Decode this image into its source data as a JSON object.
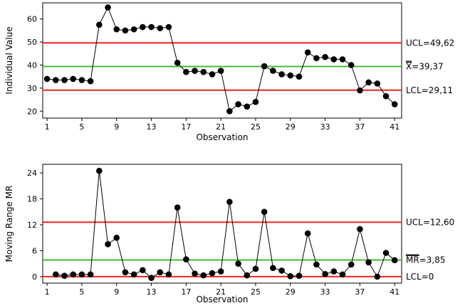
{
  "chart_data": [
    {
      "type": "line",
      "title": "",
      "xlabel": "Observation",
      "ylabel": "Individual Value",
      "xlim": [
        0.5,
        41.8
      ],
      "ylim": [
        17,
        67
      ],
      "x_ticks": [
        1,
        5,
        9,
        13,
        17,
        21,
        25,
        29,
        33,
        37,
        41
      ],
      "y_ticks": [
        20,
        30,
        40,
        50,
        60
      ],
      "series": [
        {
          "values": [
            34,
            33.5,
            33.5,
            34,
            33.5,
            33,
            57.5,
            65,
            55.5,
            55,
            55.5,
            56.5,
            56.5,
            56,
            56.5,
            41,
            37,
            37.5,
            37,
            36,
            37.5,
            20,
            23,
            22,
            24,
            39.5,
            37.5,
            36,
            35.5,
            35,
            45.5,
            43,
            43.5,
            42.5,
            42.5,
            40,
            29,
            32.5,
            32,
            26.5,
            23
          ]
        }
      ],
      "limits": [
        {
          "kind": "UCL",
          "value": 49.62,
          "label": "UCL=49,62",
          "color": "#ee2222"
        },
        {
          "kind": "center",
          "value": 39.37,
          "label_prefix": "X",
          "label_suffix": "=39,37",
          "color": "#44bb33"
        },
        {
          "kind": "LCL",
          "value": 29.11,
          "label": "LCL=29,11",
          "color": "#ee2222"
        }
      ]
    },
    {
      "type": "line",
      "title": "",
      "xlabel": "Observation",
      "ylabel": "Moving Range MR",
      "xlim": [
        0.5,
        41.8
      ],
      "ylim": [
        -1.5,
        26
      ],
      "x_ticks": [
        1,
        5,
        9,
        13,
        17,
        21,
        25,
        29,
        33,
        37,
        41
      ],
      "y_ticks": [
        0,
        6,
        12,
        18,
        24
      ],
      "start_x": 2,
      "series": [
        {
          "values": [
            0.5,
            0.2,
            0.5,
            0.5,
            0.5,
            24.5,
            7.5,
            9,
            1,
            0.5,
            1.5,
            -0.3,
            1,
            0.5,
            16,
            4,
            0.7,
            0.3,
            0.8,
            1.2,
            17.3,
            3,
            0.3,
            1.8,
            15,
            2,
            1.4,
            0.1,
            0.2,
            10,
            2.8,
            0.6,
            1.2,
            0.5,
            2.8,
            11,
            3.3,
            0,
            5.5,
            3.8
          ]
        }
      ],
      "limits": [
        {
          "kind": "UCL",
          "value": 12.6,
          "label": "UCL=12,60",
          "color": "#ee2222"
        },
        {
          "kind": "center",
          "value": 3.85,
          "label_prefix": "MR",
          "label_suffix": "=3,85",
          "color": "#44bb33"
        },
        {
          "kind": "LCL",
          "value": 0,
          "label": "LCL=0",
          "color": "#ee2222"
        }
      ]
    }
  ],
  "colors": {
    "data_line": "#000000",
    "marker": "#000000",
    "frame": "#000000"
  }
}
